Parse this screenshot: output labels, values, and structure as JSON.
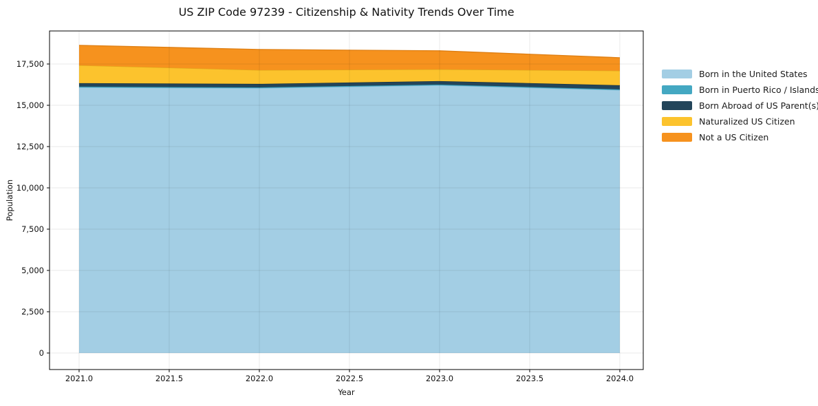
{
  "chart_data": {
    "type": "area",
    "stacked": true,
    "title": "US ZIP Code 97239 - Citizenship & Nativity Trends Over Time",
    "xlabel": "Year",
    "ylabel": "Population",
    "x": [
      2021,
      2022,
      2023,
      2024
    ],
    "series": [
      {
        "name": "Born in the United States",
        "color": "#a3cee4",
        "edge": "#85bcd6",
        "values": [
          16080,
          16040,
          16210,
          15920
        ]
      },
      {
        "name": "Born in Puerto Rico / Islands",
        "color": "#44a8c2",
        "edge": "#2f93ad",
        "values": [
          50,
          45,
          45,
          45
        ]
      },
      {
        "name": "Born Abroad of US Parent(s)",
        "color": "#23455a",
        "edge": "#16303f",
        "values": [
          210,
          210,
          210,
          250
        ]
      },
      {
        "name": "Naturalized US Citizen",
        "color": "#fcc32d",
        "edge": "#dfa91c",
        "values": [
          1080,
          835,
          710,
          875
        ]
      },
      {
        "name": "Not a US Citizen",
        "color": "#f6921e",
        "edge": "#de7e12",
        "values": [
          1210,
          1250,
          1125,
          790
        ]
      }
    ],
    "xlim": [
      2020.836,
      2024.13
    ],
    "ylim": [
      -1000,
      19500
    ],
    "xticks": {
      "values": [
        2021.0,
        2021.5,
        2022.0,
        2022.5,
        2023.0,
        2023.5,
        2024.0
      ],
      "labels": [
        "2021.0",
        "2021.5",
        "2022.0",
        "2022.5",
        "2023.0",
        "2023.5",
        "2024.0"
      ]
    },
    "yticks": {
      "values": [
        0,
        2500,
        5000,
        7500,
        10000,
        12500,
        15000,
        17500
      ],
      "labels": [
        "0",
        "2,500",
        "5,000",
        "7,500",
        "10,000",
        "12,500",
        "15,000",
        "17,500"
      ]
    },
    "grid": true,
    "legend_position": "right",
    "background": "#ffffff",
    "spine_color": "#000000",
    "grid_color_rgba": "rgba(0,0,0,0.085)"
  }
}
